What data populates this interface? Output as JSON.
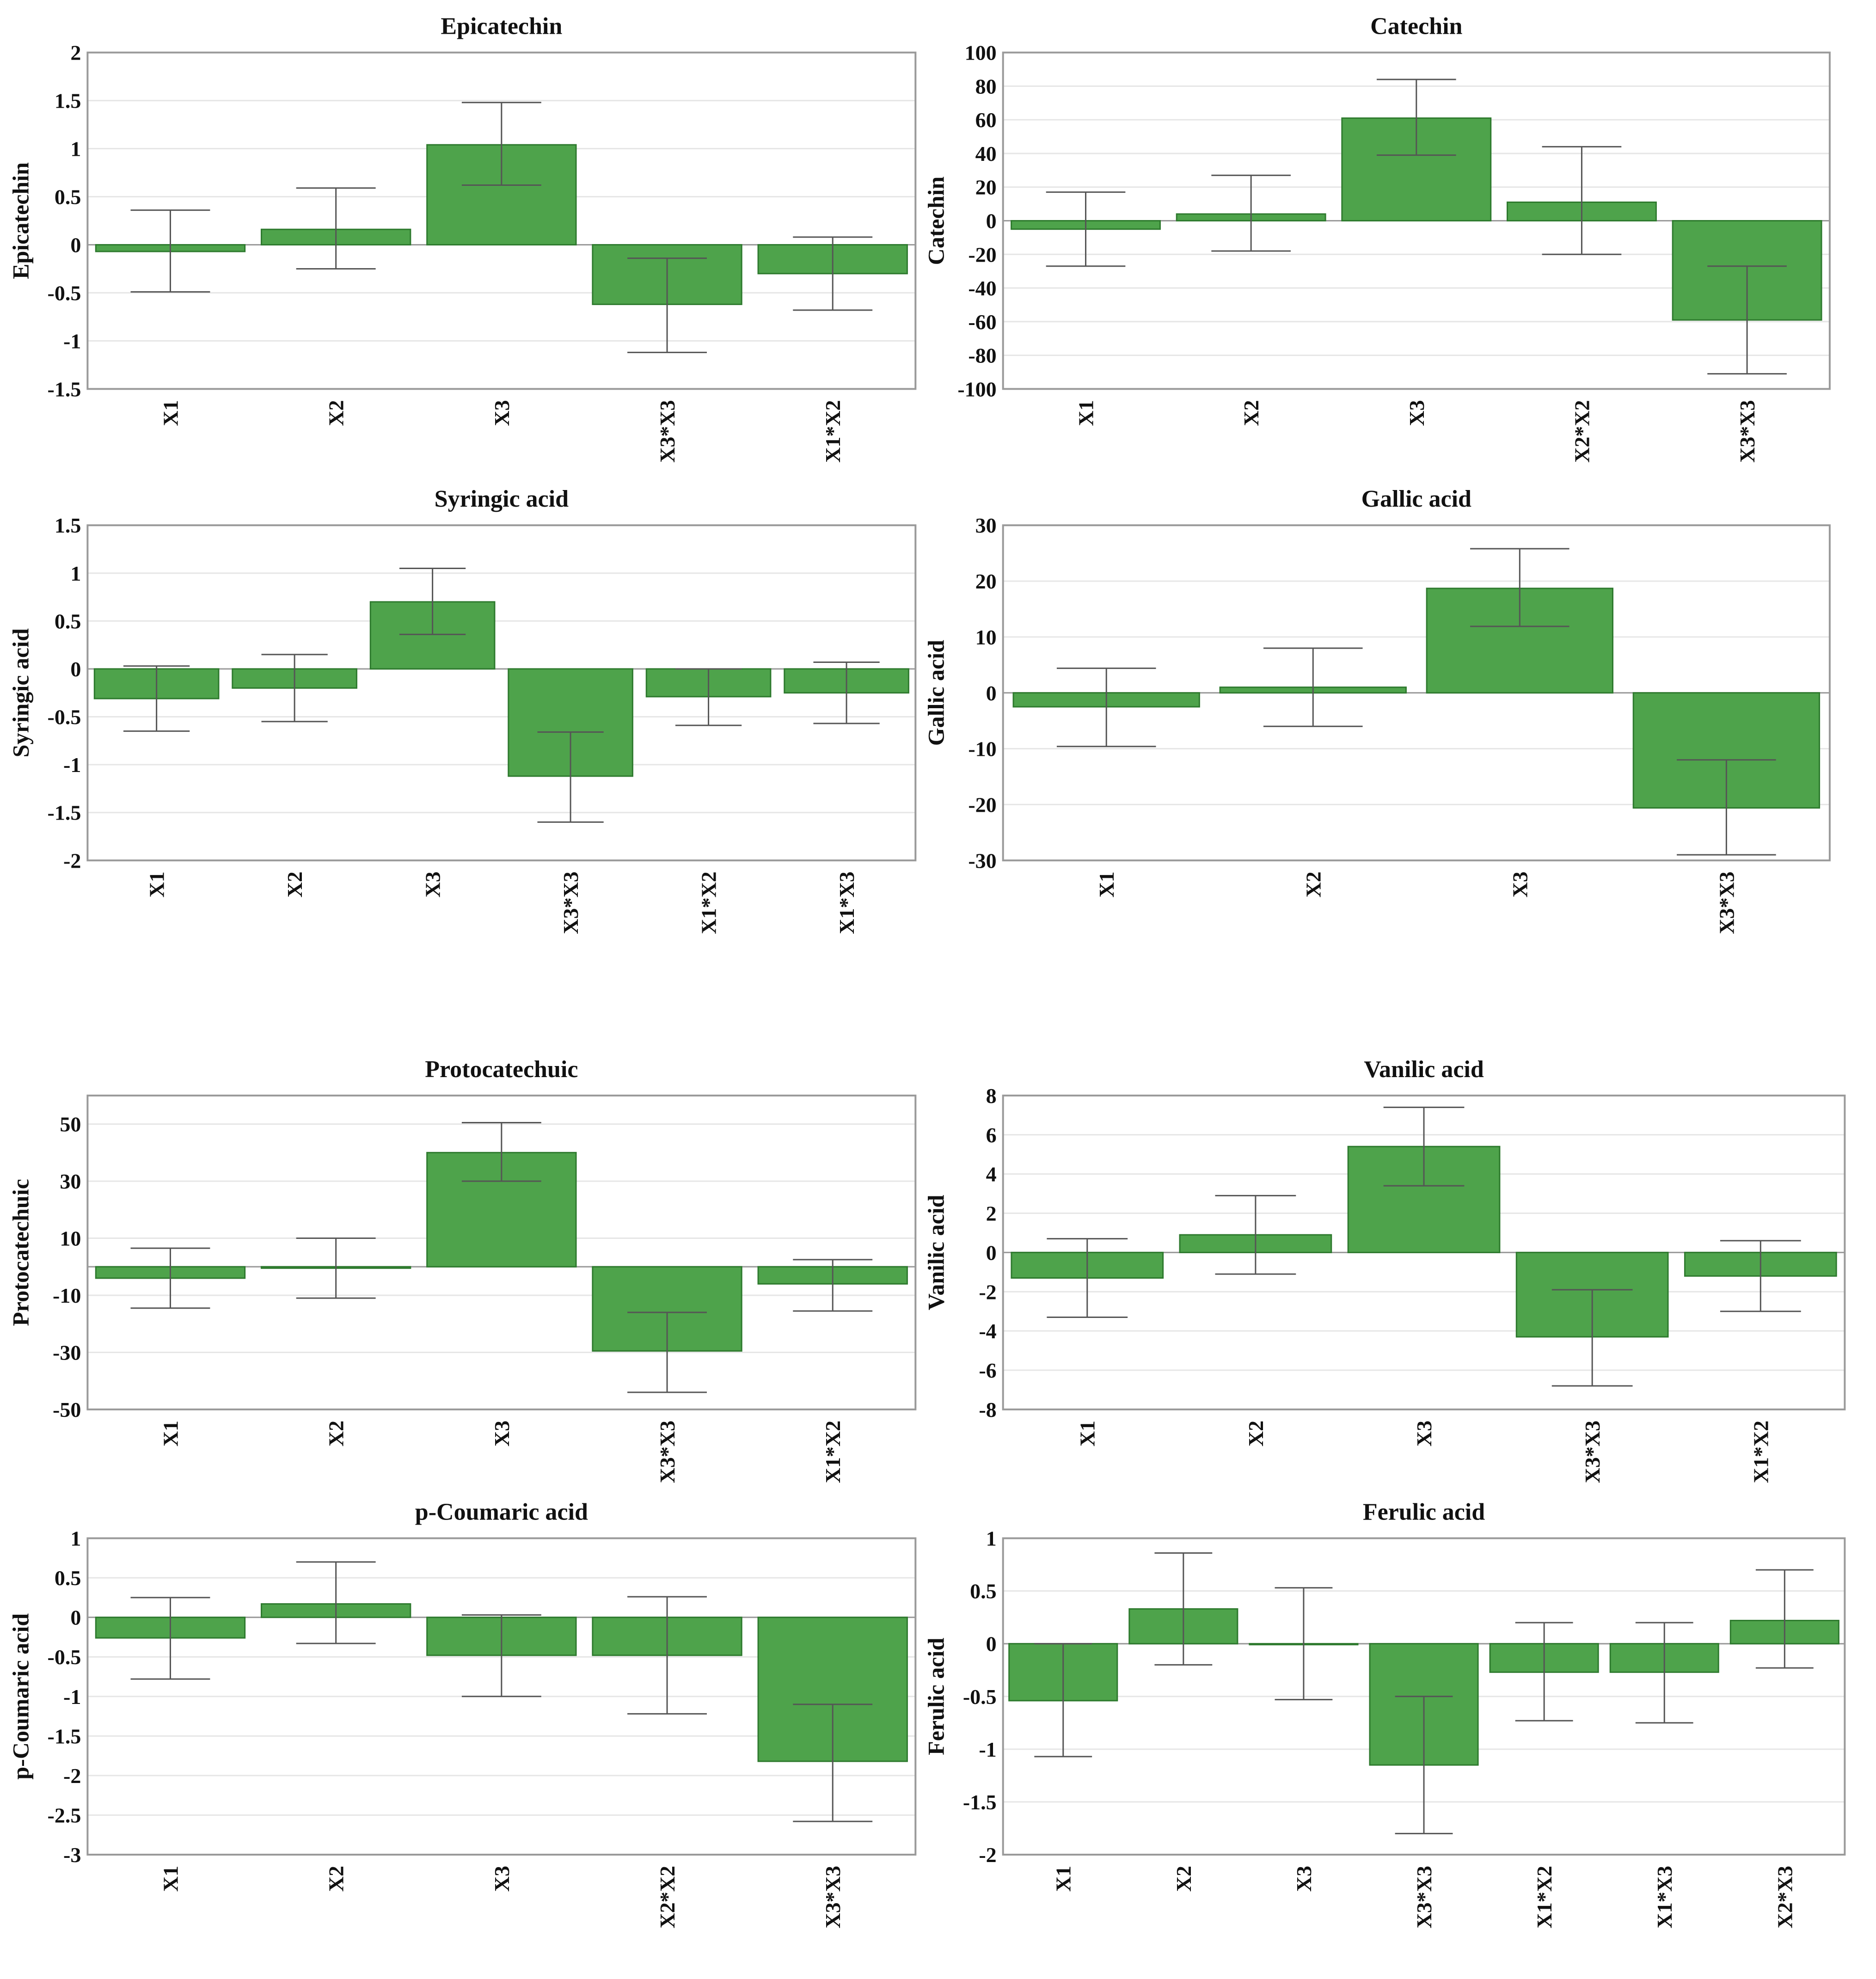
{
  "colors": {
    "bar": "#4ea34b",
    "bar_edge": "#2e7a2e",
    "error": "#555555",
    "grid": "#e6e6e6"
  },
  "chart_data": [
    {
      "type": "bar",
      "title": "Epicatechin",
      "ylabel": "Epicatechin",
      "xlabel": "",
      "ylim": [
        -1.5,
        2
      ],
      "yticks": [
        2,
        1.5,
        1,
        0.5,
        0,
        -0.5,
        -1,
        -1.5
      ],
      "ytick_labels": [
        "2",
        "1.5",
        "1",
        "0.5",
        "0",
        "-0.5",
        "-1",
        "-1.5"
      ],
      "categories": [
        "X1",
        "X2",
        "X3",
        "X3*X3",
        "X1*X2"
      ],
      "values": [
        -0.07,
        0.16,
        1.04,
        -0.62,
        -0.3
      ],
      "err_low": [
        -0.49,
        -0.25,
        0.62,
        -1.12,
        -0.68
      ],
      "err_high": [
        0.36,
        0.59,
        1.48,
        -0.14,
        0.08
      ]
    },
    {
      "type": "bar",
      "title": "Catechin",
      "ylabel": "Catechin",
      "xlabel": "",
      "ylim": [
        -100,
        100
      ],
      "yticks": [
        100,
        80,
        60,
        40,
        20,
        0,
        -20,
        -40,
        -60,
        -80,
        -100
      ],
      "ytick_labels": [
        "100",
        "80",
        "60",
        "40",
        "20",
        "0",
        "-20",
        "-40",
        "-60",
        "-80",
        "-100"
      ],
      "categories": [
        "X1",
        "X2",
        "X3",
        "X2*X2",
        "X3*X3"
      ],
      "values": [
        -5,
        4,
        61,
        11,
        -59
      ],
      "err_low": [
        -27,
        -18,
        39,
        -20,
        -91
      ],
      "err_high": [
        17,
        27,
        84,
        44,
        -27
      ]
    },
    {
      "type": "bar",
      "title": "Syringic acid",
      "ylabel": "Syringic acid",
      "xlabel": "",
      "ylim": [
        -2,
        1.5
      ],
      "yticks": [
        1.5,
        1,
        0.5,
        0,
        -0.5,
        -1,
        -1.5,
        -2
      ],
      "ytick_labels": [
        "1.5",
        "1",
        "0.5",
        "0",
        "-0.5",
        "-1",
        "-1.5",
        "-2"
      ],
      "categories": [
        "X1",
        "X2",
        "X3",
        "X3*X3",
        "X1*X2",
        "X1*X3"
      ],
      "values": [
        -0.31,
        -0.2,
        0.7,
        -1.12,
        -0.29,
        -0.25
      ],
      "err_low": [
        -0.65,
        -0.55,
        0.36,
        -1.6,
        -0.59,
        -0.57
      ],
      "err_high": [
        0.03,
        0.15,
        1.05,
        -0.66,
        0.0,
        0.07
      ]
    },
    {
      "type": "bar",
      "title": "Gallic acid",
      "ylabel": "Gallic acid",
      "xlabel": "",
      "ylim": [
        -30,
        30
      ],
      "yticks": [
        30,
        20,
        10,
        0,
        -10,
        -20,
        -30
      ],
      "ytick_labels": [
        "30",
        "20",
        "10",
        "0",
        "-10",
        "-20",
        "-30"
      ],
      "categories": [
        "X1",
        "X2",
        "X3",
        "X3*X3"
      ],
      "values": [
        -2.5,
        1,
        18.7,
        -20.6
      ],
      "err_low": [
        -9.6,
        -6,
        11.9,
        -29
      ],
      "err_high": [
        4.4,
        8,
        25.8,
        -12
      ]
    },
    {
      "type": "bar",
      "title": "Protocatechuic",
      "ylabel": "Protocatechuic",
      "xlabel": "",
      "ylim": [
        -50,
        60
      ],
      "yticks": [
        50,
        30,
        10,
        -10,
        -30,
        -50
      ],
      "ytick_labels": [
        "50",
        "30",
        "10",
        "-10",
        "-30",
        "-50"
      ],
      "categories": [
        "X1",
        "X2",
        "X3",
        "X3*X3",
        "X1*X2"
      ],
      "values": [
        -4,
        -0.5,
        40,
        -29.5,
        -6
      ],
      "err_low": [
        -14.5,
        -11,
        30,
        -44,
        -15.5
      ],
      "err_high": [
        6.5,
        10,
        50.5,
        -16,
        2.5
      ]
    },
    {
      "type": "bar",
      "title": "Vanilic acid",
      "ylabel": "Vanilic acid",
      "xlabel": "",
      "ylim": [
        -8,
        8
      ],
      "yticks": [
        8,
        6,
        4,
        2,
        0,
        -2,
        -4,
        -6,
        -8
      ],
      "ytick_labels": [
        "8",
        "6",
        "4",
        "2",
        "0",
        "-2",
        "-4",
        "-6",
        "-8"
      ],
      "categories": [
        "X1",
        "X2",
        "X3",
        "X3*X3",
        "X1*X2"
      ],
      "values": [
        -1.3,
        0.9,
        5.4,
        -4.3,
        -1.2
      ],
      "err_low": [
        -3.3,
        -1.1,
        3.4,
        -6.8,
        -3
      ],
      "err_high": [
        0.7,
        2.9,
        7.4,
        -1.9,
        0.6
      ]
    },
    {
      "type": "bar",
      "title": "p-Coumaric acid",
      "ylabel": "p-Coumaric acid",
      "xlabel": "",
      "ylim": [
        -3,
        1
      ],
      "yticks": [
        1,
        0.5,
        0,
        -0.5,
        -1,
        -1.5,
        -2,
        -2.5,
        -3
      ],
      "ytick_labels": [
        "1",
        "0.5",
        "0",
        "-0.5",
        "-1",
        "-1.5",
        "-2",
        "-2.5",
        "-3"
      ],
      "categories": [
        "X1",
        "X2",
        "X3",
        "X2*X2",
        "X3*X3"
      ],
      "values": [
        -0.26,
        0.17,
        -0.48,
        -0.48,
        -1.82
      ],
      "err_low": [
        -0.78,
        -0.33,
        -1.0,
        -1.22,
        -2.58
      ],
      "err_high": [
        0.25,
        0.7,
        0.03,
        0.26,
        -1.1
      ]
    },
    {
      "type": "bar",
      "title": "Ferulic acid",
      "ylabel": "Ferulic acid",
      "xlabel": "",
      "ylim": [
        -2,
        1
      ],
      "yticks": [
        1,
        0.5,
        0,
        -0.5,
        -1,
        -1.5,
        -2
      ],
      "ytick_labels": [
        "1",
        "0.5",
        "0",
        "-0.5",
        "-1",
        "-1.5",
        "-2"
      ],
      "categories": [
        "X1",
        "X2",
        "X3",
        "X3*X3",
        "X1*X2",
        "X1*X3",
        "X2*X3"
      ],
      "values": [
        -0.54,
        0.33,
        0.0,
        -1.15,
        -0.27,
        -0.27,
        0.22
      ],
      "err_low": [
        -1.07,
        -0.2,
        -0.53,
        -1.8,
        -0.73,
        -0.75,
        -0.23
      ],
      "err_high": [
        0.0,
        0.86,
        0.53,
        -0.5,
        0.2,
        0.2,
        0.7
      ]
    }
  ]
}
